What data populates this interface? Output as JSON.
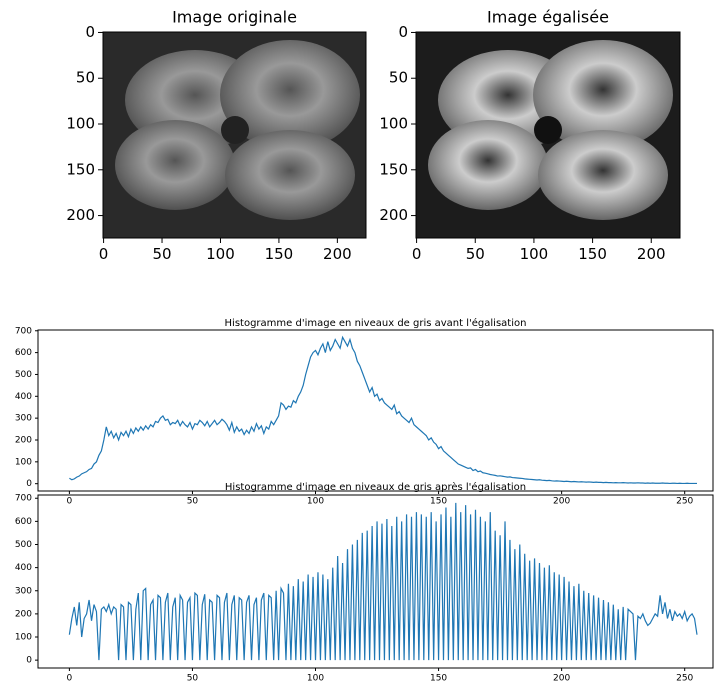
{
  "chart_data": [
    {
      "type": "image",
      "title": "Image originale",
      "xlim": [
        -0.5,
        224.5
      ],
      "ylim": [
        224.5,
        -0.5
      ],
      "xticks": [
        0,
        50,
        100,
        150,
        200
      ],
      "yticks": [
        0,
        50,
        100,
        150,
        200
      ]
    },
    {
      "type": "image",
      "title": "Image égalisée",
      "xlim": [
        -0.5,
        224.5
      ],
      "ylim": [
        224.5,
        -0.5
      ],
      "xticks": [
        0,
        50,
        100,
        150,
        200
      ],
      "yticks": [
        0,
        50,
        100,
        150,
        200
      ]
    },
    {
      "type": "line",
      "title": "Histogramme d'image en niveaux de gris avant l'égalisation",
      "color": "#1f77b4",
      "xlim": [
        -12.75,
        261.5
      ],
      "ylim": [
        -33.5,
        703.5
      ],
      "xticks": [
        0,
        50,
        100,
        150,
        200,
        250
      ],
      "yticks": [
        0,
        100,
        200,
        300,
        400,
        500,
        600,
        700
      ],
      "values": [
        25,
        18,
        22,
        30,
        35,
        45,
        50,
        55,
        65,
        70,
        90,
        100,
        130,
        150,
        200,
        260,
        220,
        240,
        210,
        230,
        200,
        235,
        220,
        240,
        215,
        250,
        230,
        255,
        240,
        260,
        245,
        265,
        250,
        270,
        260,
        285,
        280,
        300,
        310,
        290,
        295,
        270,
        280,
        275,
        290,
        265,
        285,
        270,
        260,
        280,
        250,
        275,
        270,
        290,
        280,
        265,
        285,
        260,
        275,
        290,
        270,
        280,
        295,
        285,
        270,
        245,
        280,
        235,
        260,
        240,
        250,
        225,
        245,
        230,
        260,
        240,
        275,
        250,
        265,
        230,
        260,
        250,
        285,
        270,
        290,
        310,
        370,
        360,
        340,
        355,
        350,
        380,
        370,
        400,
        420,
        450,
        500,
        540,
        580,
        600,
        610,
        590,
        620,
        640,
        600,
        650,
        610,
        630,
        660,
        640,
        620,
        670,
        650,
        630,
        660,
        620,
        600,
        560,
        540,
        510,
        480,
        450,
        420,
        440,
        400,
        410,
        380,
        390,
        370,
        360,
        350,
        340,
        360,
        320,
        330,
        310,
        300,
        290,
        280,
        300,
        270,
        260,
        250,
        240,
        230,
        220,
        200,
        210,
        190,
        180,
        160,
        170,
        150,
        140,
        130,
        120,
        110,
        100,
        90,
        85,
        80,
        75,
        70,
        72,
        60,
        65,
        55,
        58,
        50,
        48,
        45,
        42,
        40,
        38,
        35,
        36,
        34,
        32,
        30,
        31,
        28,
        27,
        26,
        25,
        24,
        22,
        21,
        20,
        19,
        18,
        17,
        18,
        16,
        15,
        14,
        15,
        13,
        12,
        13,
        12,
        11,
        10,
        11,
        10,
        9,
        10,
        9,
        8,
        9,
        8,
        7,
        8,
        7,
        6,
        7,
        6,
        6,
        5,
        6,
        5,
        5,
        4,
        5,
        4,
        4,
        5,
        4,
        3,
        4,
        3,
        3,
        4,
        3,
        3,
        2,
        3,
        2,
        3,
        2,
        2,
        2,
        3,
        2,
        2,
        1,
        2,
        2,
        1,
        2,
        1,
        1,
        2,
        1,
        1,
        1,
        1
      ]
    },
    {
      "type": "line",
      "title": "Histogramme d'image en niveaux de gris après l'égalisation",
      "color": "#1f77b4",
      "xlim": [
        -12.75,
        261.5
      ],
      "ylim": [
        -34,
        714
      ],
      "xticks": [
        0,
        50,
        100,
        150,
        200,
        250
      ],
      "yticks": [
        0,
        100,
        200,
        300,
        400,
        500,
        600,
        700
      ],
      "values": [
        110,
        180,
        230,
        150,
        250,
        100,
        180,
        200,
        260,
        170,
        240,
        210,
        0,
        220,
        230,
        210,
        240,
        200,
        230,
        220,
        0,
        240,
        230,
        0,
        250,
        240,
        0,
        220,
        290,
        0,
        300,
        310,
        0,
        240,
        260,
        0,
        280,
        270,
        0,
        250,
        290,
        0,
        230,
        270,
        0,
        280,
        260,
        0,
        250,
        270,
        0,
        290,
        280,
        0,
        240,
        285,
        0,
        260,
        250,
        0,
        280,
        270,
        0,
        250,
        290,
        0,
        240,
        280,
        0,
        270,
        260,
        0,
        250,
        280,
        0,
        240,
        270,
        0,
        260,
        290,
        0,
        280,
        270,
        0,
        300,
        0,
        310,
        290,
        0,
        330,
        0,
        320,
        0,
        350,
        0,
        340,
        0,
        370,
        0,
        360,
        0,
        380,
        0,
        370,
        0,
        350,
        0,
        400,
        0,
        450,
        0,
        420,
        0,
        480,
        0,
        500,
        0,
        520,
        0,
        550,
        0,
        560,
        0,
        580,
        0,
        600,
        0,
        590,
        0,
        610,
        0,
        580,
        0,
        620,
        0,
        600,
        0,
        630,
        0,
        620,
        0,
        640,
        0,
        630,
        0,
        620,
        0,
        640,
        0,
        600,
        0,
        630,
        0,
        660,
        0,
        620,
        0,
        680,
        0,
        640,
        0,
        670,
        0,
        630,
        0,
        650,
        0,
        620,
        0,
        600,
        0,
        640,
        0,
        560,
        0,
        540,
        0,
        600,
        0,
        520,
        0,
        480,
        0,
        500,
        0,
        460,
        0,
        430,
        0,
        440,
        0,
        420,
        0,
        400,
        0,
        410,
        0,
        380,
        0,
        370,
        0,
        360,
        0,
        340,
        0,
        320,
        0,
        330,
        0,
        300,
        0,
        290,
        0,
        280,
        0,
        270,
        0,
        260,
        0,
        250,
        0,
        240,
        0,
        220,
        0,
        230,
        0,
        220,
        210,
        200,
        0,
        190,
        180,
        200,
        170,
        150,
        160,
        180,
        200,
        190,
        280,
        200,
        250,
        180,
        220,
        170,
        210,
        190,
        200,
        180,
        210,
        170,
        190,
        200,
        180,
        110
      ]
    }
  ]
}
